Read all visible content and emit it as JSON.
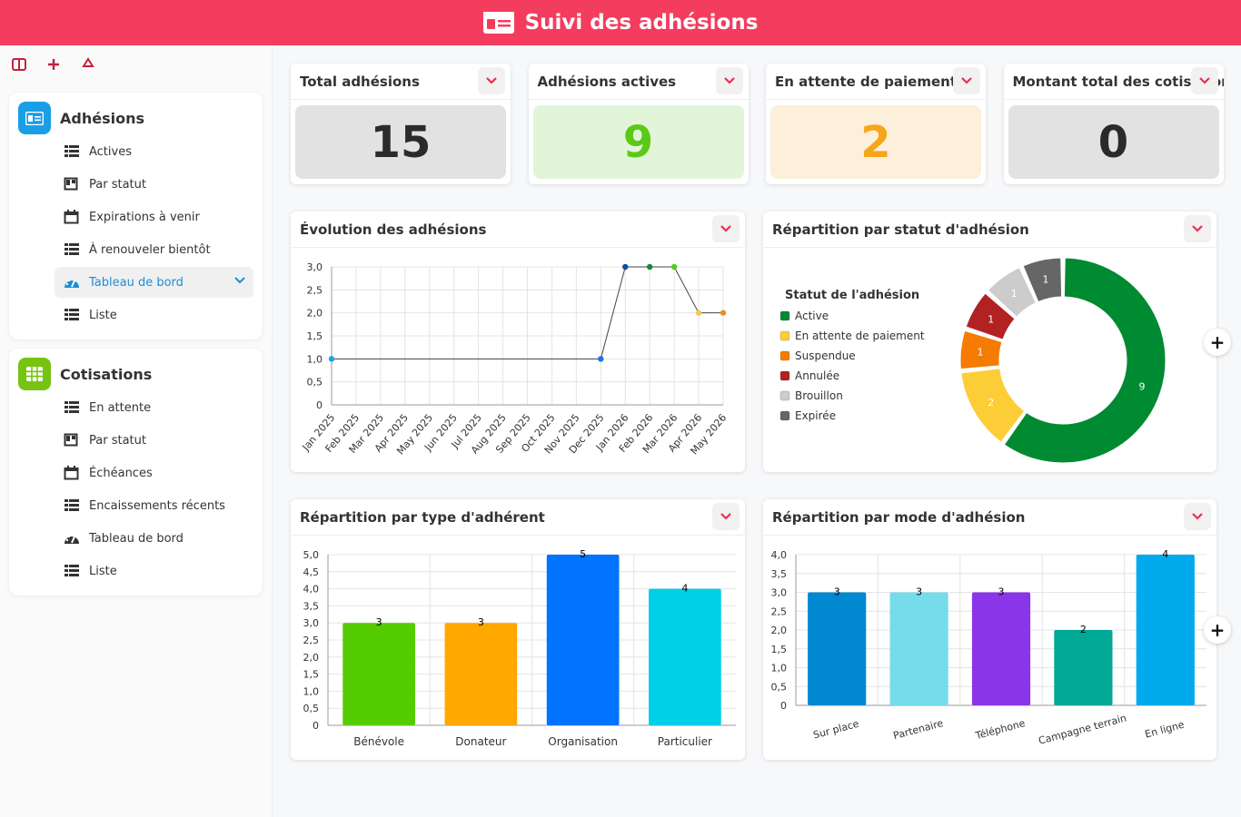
{
  "header": {
    "title": "Suivi des adhésions",
    "color": "#f43c5e"
  },
  "sidebar": {
    "groups": [
      {
        "title": "Adhésions",
        "icon": "id-card-icon",
        "color": "#1a9ee6",
        "items": [
          {
            "label": "Actives",
            "icon": "list-icon"
          },
          {
            "label": "Par statut",
            "icon": "kanban-icon"
          },
          {
            "label": "Expirations à venir",
            "icon": "calendar-icon"
          },
          {
            "label": "À renouveler bientôt",
            "icon": "list-icon"
          },
          {
            "label": "Tableau de bord",
            "icon": "dashboard-icon",
            "selected": true
          },
          {
            "label": "Liste",
            "icon": "list-icon"
          }
        ]
      },
      {
        "title": "Cotisations",
        "icon": "grid-icon",
        "color": "#76c312",
        "items": [
          {
            "label": "En attente",
            "icon": "list-icon"
          },
          {
            "label": "Par statut",
            "icon": "kanban-icon"
          },
          {
            "label": "Échéances",
            "icon": "calendar-icon"
          },
          {
            "label": "Encaissements récents",
            "icon": "list-icon"
          },
          {
            "label": "Tableau de bord",
            "icon": "dashboard-icon"
          },
          {
            "label": "Liste",
            "icon": "list-icon"
          }
        ]
      }
    ]
  },
  "kpis": [
    {
      "title": "Total adhésions",
      "value": "15",
      "bg": "#e2e2e2",
      "fg": "#2b2b2b"
    },
    {
      "title": "Adhésions actives",
      "value": "9",
      "bg": "#e3f5d9",
      "fg": "#5bc918"
    },
    {
      "title": "En attente de paiement",
      "value": "2",
      "bg": "#fcf0da",
      "fg": "#f7a51a"
    },
    {
      "title": "Montant total des cotisations",
      "value": "0",
      "bg": "#e2e2e2",
      "fg": "#2b2b2b"
    }
  ],
  "cards": {
    "evolution": "Évolution des adhésions",
    "statut": "Répartition par statut d'adhésion",
    "type": "Répartition par type d'adhérent",
    "mode": "Répartition par mode d'adhésion"
  },
  "chart_data": [
    {
      "type": "line",
      "title": "Évolution des adhésions",
      "x": [
        "Jan 2025",
        "Feb 2025",
        "Mar 2025",
        "Apr 2025",
        "May 2025",
        "Jun 2025",
        "Jul 2025",
        "Aug 2025",
        "Sep 2025",
        "Oct 2025",
        "Nov 2025",
        "Dec 2025",
        "Jan 2026",
        "Feb 2026",
        "Mar 2026",
        "Apr 2026",
        "May 2026"
      ],
      "values": [
        1,
        null,
        null,
        null,
        null,
        null,
        null,
        null,
        null,
        null,
        null,
        1,
        3,
        3,
        3,
        2,
        2
      ],
      "point_colors": [
        "#1aa3e8",
        null,
        null,
        null,
        null,
        null,
        null,
        null,
        null,
        null,
        null,
        "#1a73e8",
        "#0f4aa3",
        "#138a36",
        "#5bc918",
        "#f7c948",
        "#f08a24"
      ],
      "yticks": [
        "0",
        "0,5",
        "1,0",
        "1,5",
        "2,0",
        "2,5",
        "3,0"
      ],
      "ylim": [
        0,
        3
      ],
      "grid": true
    },
    {
      "type": "pie",
      "title": "Répartition par statut d'adhésion",
      "legend_title": "Statut de l'adhésion",
      "slices": [
        {
          "label": "Active",
          "value": 9,
          "color": "#008a32"
        },
        {
          "label": "En attente de paiement",
          "value": 2,
          "color": "#fdcd38"
        },
        {
          "label": "Suspendue",
          "value": 1,
          "color": "#f57c00"
        },
        {
          "label": "Annulée",
          "value": 1,
          "color": "#b22222"
        },
        {
          "label": "Brouillon",
          "value": 1,
          "color": "#cccccc"
        },
        {
          "label": "Expirée",
          "value": 1,
          "color": "#666666"
        }
      ]
    },
    {
      "type": "bar",
      "title": "Répartition par type d'adhérent",
      "categories": [
        "Bénévole",
        "Donateur",
        "Organisation",
        "Particulier"
      ],
      "values": [
        3,
        3,
        5,
        4
      ],
      "colors": [
        "#55cc00",
        "#ffa800",
        "#0073ff",
        "#00cfea"
      ],
      "yticks": [
        "0",
        "0,5",
        "1,0",
        "1,5",
        "2,0",
        "2,5",
        "3,0",
        "3,5",
        "4,0",
        "4,5",
        "5,0"
      ],
      "ylim": [
        0,
        5
      ],
      "grid": true
    },
    {
      "type": "bar",
      "title": "Répartition par mode d'adhésion",
      "categories": [
        "Sur place",
        "Partenaire",
        "Téléphone",
        "Campagne terrain",
        "En ligne"
      ],
      "values": [
        3,
        3,
        3,
        2,
        4
      ],
      "colors": [
        "#0088d1",
        "#76dcea",
        "#8a35e8",
        "#00a896",
        "#00aaec"
      ],
      "yticks": [
        "0",
        "0,5",
        "1,0",
        "1,5",
        "2,0",
        "2,5",
        "3,0",
        "3,5",
        "4,0"
      ],
      "ylim": [
        0,
        4
      ],
      "grid": true
    }
  ]
}
